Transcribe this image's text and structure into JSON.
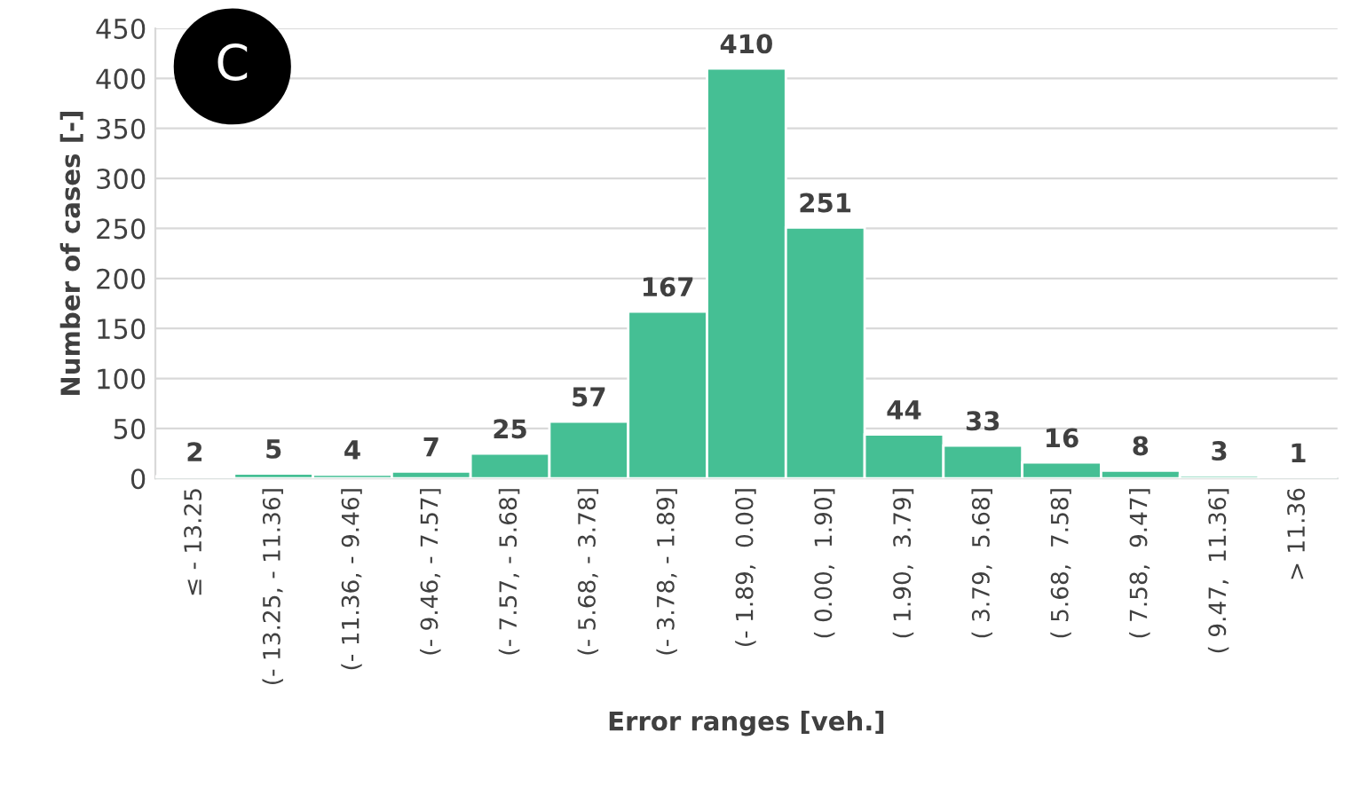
{
  "chart_data": {
    "type": "bar",
    "xlabel": "Error ranges [veh.]",
    "ylabel": "Number of cases [-]",
    "categories": [
      "≤ - 13.25",
      "(- 13.25, - 11.36]",
      "(- 11.36, - 9.46]",
      "(- 9.46, - 7.57]",
      "(- 7.57, - 5.68]",
      "(- 5.68, - 3.78]",
      "(- 3.78, - 1.89]",
      "(- 1.89,  0.00]",
      "( 0.00,  1.90]",
      "( 1.90,  3.79]",
      "( 3.79,  5.68]",
      "( 5.68,  7.58]",
      "( 7.58,  9.47]",
      "( 9.47,  11.36]",
      "> 11.36"
    ],
    "values": [
      2,
      5,
      4,
      7,
      25,
      57,
      167,
      410,
      251,
      44,
      33,
      16,
      8,
      3,
      1
    ],
    "color": "#45bf94",
    "ylim": [
      0,
      450
    ],
    "yticks": [
      0,
      50,
      100,
      150,
      200,
      250,
      300,
      350,
      400,
      450
    ],
    "grid": "y",
    "data_labels": true,
    "annotations": [
      "C"
    ]
  }
}
